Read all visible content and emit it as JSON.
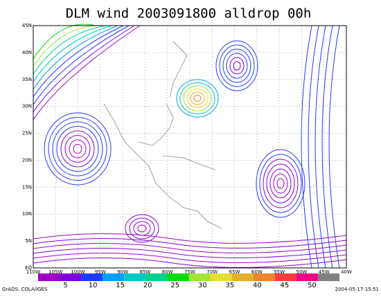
{
  "title": "DLM wind 2003091800 alldrop 00h",
  "lat_labels": [
    "EQ",
    "5N",
    "10N",
    "15N",
    "20N",
    "25N",
    "30N",
    "35N",
    "40N",
    "45N"
  ],
  "lon_labels": [
    "110W",
    "105W",
    "100W",
    "95W",
    "90W",
    "85W",
    "80W",
    "75W",
    "70W",
    "65W",
    "60W",
    "55W",
    "50W",
    "45W",
    "40W"
  ],
  "colorbar": {
    "labels": [
      "5",
      "10",
      "15",
      "20",
      "25",
      "30",
      "35",
      "40",
      "45",
      "50"
    ],
    "colors": [
      "#a000c8",
      "#8200dc",
      "#1e3cff",
      "#00a0ff",
      "#00c8c8",
      "#00d28c",
      "#00dc00",
      "#a0e632",
      "#e6dc32",
      "#e6af2d",
      "#f08228",
      "#fa3c3c",
      "#f00082",
      "#808080"
    ]
  },
  "footer": {
    "left": "GrADS: COLA/IGES",
    "right": "2004-05-17-15:51"
  }
}
